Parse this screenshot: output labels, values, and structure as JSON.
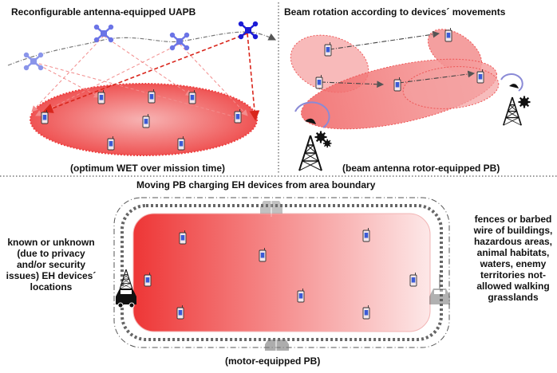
{
  "panels": {
    "top_left": {
      "title": "Reconfigurable antenna-equipped UAPB",
      "caption": "(optimum WET over mission time)"
    },
    "top_right": {
      "title": "Beam rotation according to devices´ movements",
      "caption": "(beam antenna rotor-equipped PB)"
    },
    "bottom": {
      "title": "Moving PB charging EH devices from area boundary",
      "left_note": "known or unknown (due to privacy and/or security issues) EH devices´ locations",
      "right_note": "fences or barbed wire of buildings, hazardous areas, animal habitats, waters, enemy territories not-allowed walking grasslands",
      "caption": "(motor-equipped PB)"
    }
  },
  "colors": {
    "area_red": "#ee3b3b",
    "uav_blue": "#1b1bd6",
    "arrow_red": "#d9261c",
    "path_gray": "#666666"
  },
  "icons": [
    "drone-icon",
    "device-icon",
    "tower-icon",
    "gear-icon",
    "rotating-arrow-icon",
    "car-icon"
  ]
}
